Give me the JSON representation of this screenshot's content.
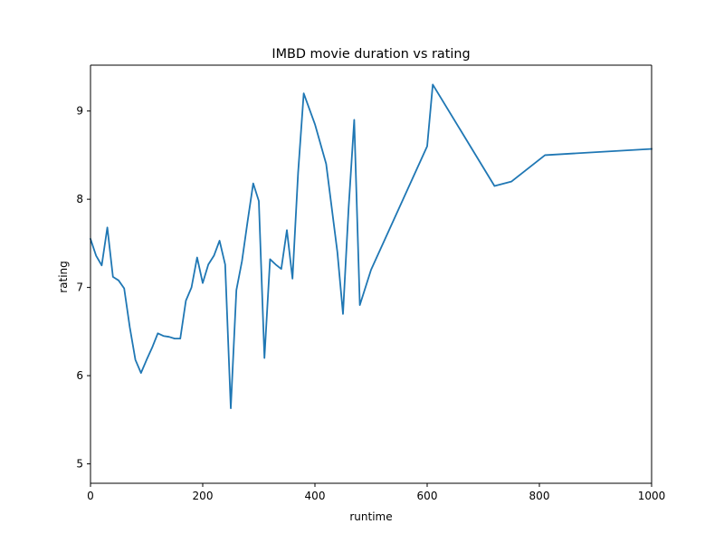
{
  "chart_data": {
    "type": "line",
    "title": "IMBD movie duration vs rating",
    "xlabel": "runtime",
    "ylabel": "rating",
    "xlim": [
      0,
      1000
    ],
    "ylim": [
      4.78,
      5.0
    ],
    "ylim_top": 9.52,
    "xticks": [
      0,
      200,
      400,
      600,
      800,
      1000
    ],
    "yticks": [
      5,
      6,
      7,
      8,
      9
    ],
    "grid": false,
    "series": [
      {
        "name": "rating",
        "color": "#1f77b4",
        "x": [
          0,
          10,
          20,
          30,
          40,
          50,
          60,
          70,
          80,
          90,
          100,
          110,
          120,
          130,
          140,
          150,
          160,
          170,
          180,
          190,
          200,
          210,
          220,
          230,
          240,
          250,
          260,
          270,
          280,
          290,
          300,
          310,
          320,
          330,
          340,
          350,
          360,
          370,
          380,
          400,
          420,
          440,
          450,
          460,
          470,
          480,
          500,
          600,
          610,
          720,
          750,
          810,
          1000
        ],
        "y": [
          7.55,
          7.36,
          7.25,
          7.68,
          7.12,
          7.08,
          6.99,
          6.55,
          6.18,
          6.03,
          6.18,
          6.32,
          6.48,
          6.45,
          6.44,
          6.42,
          6.42,
          6.85,
          7.0,
          7.34,
          7.05,
          7.26,
          7.36,
          7.53,
          7.26,
          5.63,
          6.97,
          7.3,
          7.75,
          8.18,
          7.98,
          6.2,
          7.32,
          7.26,
          7.21,
          7.65,
          7.1,
          8.3,
          9.2,
          8.85,
          8.4,
          7.4,
          6.7,
          7.9,
          8.9,
          6.8,
          7.2,
          8.6,
          9.3,
          8.15,
          8.2,
          8.5,
          8.57
        ]
      }
    ]
  }
}
